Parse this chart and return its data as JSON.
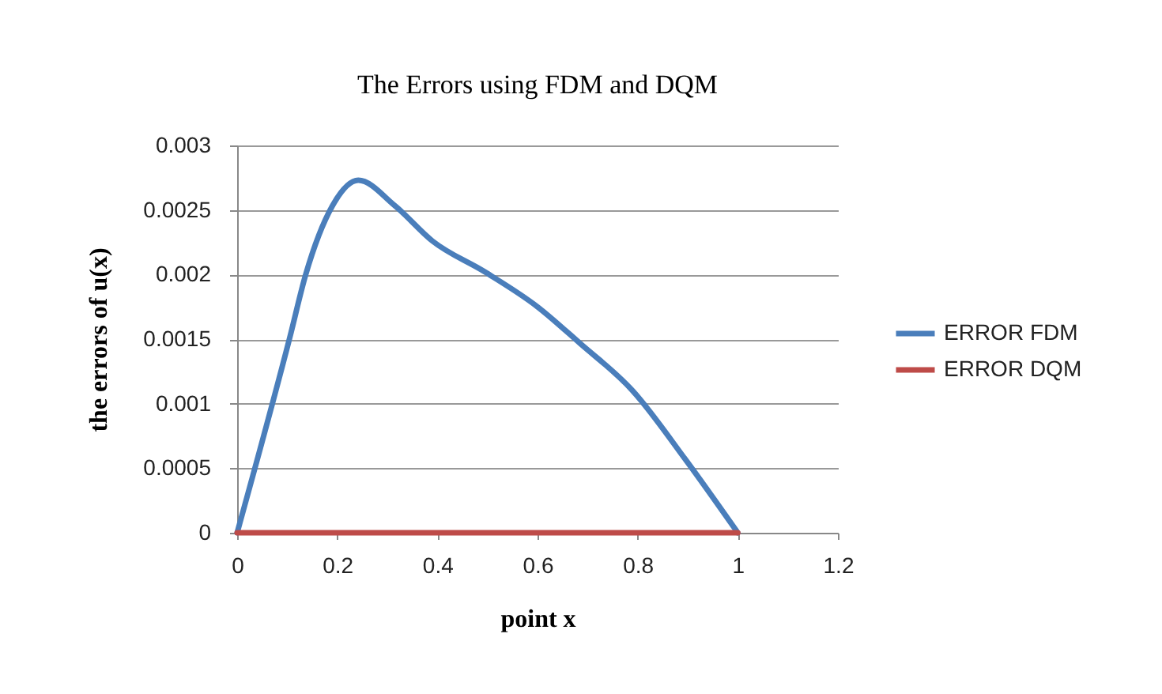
{
  "chart_data": {
    "type": "line",
    "title": "The Errors using FDM and DQM",
    "xlabel": "point x",
    "ylabel": "the errors of u(x)",
    "xlim": [
      0,
      1.2
    ],
    "xticks": [
      0,
      0.2,
      0.4,
      0.6,
      0.8,
      1,
      1.2
    ],
    "ylim": [
      0,
      0.003
    ],
    "yticks": [
      0,
      0.0005,
      0.001,
      0.0015,
      0.002,
      0.0025,
      0.003
    ],
    "grid": "y",
    "legend": "right",
    "marker": "none",
    "line_style": "solid",
    "series": [
      {
        "name": "ERROR FDM",
        "color": "#4a7ebb",
        "x": [
          0,
          0.105,
          0.137,
          0.19,
          0.242,
          0.316,
          0.39,
          0.495,
          0.6,
          0.684,
          0.79,
          0.895,
          1.0
        ],
        "values": [
          0,
          0.00151,
          0.002,
          0.00253,
          0.00273,
          0.00253,
          0.00226,
          0.00202,
          0.00175,
          0.00147,
          0.0011,
          0.00057,
          0
        ]
      },
      {
        "name": "ERROR DQM",
        "color": "#be4b48",
        "x": [
          0,
          1.0
        ],
        "values": [
          0,
          0
        ]
      }
    ]
  }
}
